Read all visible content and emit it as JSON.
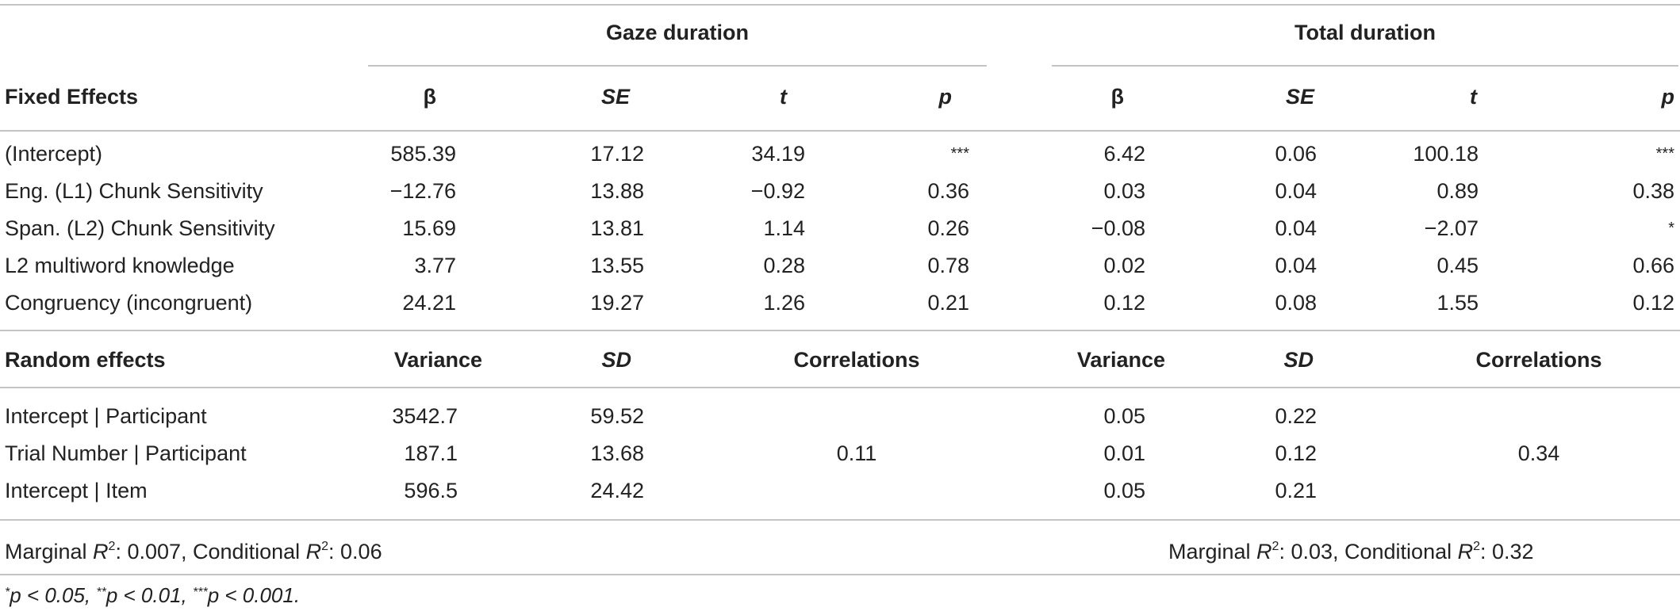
{
  "groups": {
    "gaze": "Gaze duration",
    "total": "Total duration"
  },
  "fixed": {
    "header": {
      "label": "Fixed Effects",
      "gaze": [
        "β",
        "SE",
        "t",
        "p"
      ],
      "total": [
        "β",
        "SE",
        "t",
        "p"
      ]
    },
    "rows": [
      {
        "label": "(Intercept)",
        "gaze": [
          "585.39",
          "17.12",
          "34.19",
          "***"
        ],
        "total": [
          "6.42",
          "0.06",
          "100.18",
          "***"
        ]
      },
      {
        "label": "Eng. (L1) Chunk Sensitivity",
        "gaze": [
          "−12.76",
          "13.88",
          "−0.92",
          "0.36"
        ],
        "total": [
          "0.03",
          "0.04",
          "0.89",
          "0.38"
        ]
      },
      {
        "label": "Span. (L2) Chunk Sensitivity",
        "gaze": [
          "15.69",
          "13.81",
          "1.14",
          "0.26"
        ],
        "total": [
          "−0.08",
          "0.04",
          "−2.07",
          "*"
        ]
      },
      {
        "label": "L2 multiword knowledge",
        "gaze": [
          "3.77",
          "13.55",
          "0.28",
          "0.78"
        ],
        "total": [
          "0.02",
          "0.04",
          "0.45",
          "0.66"
        ]
      },
      {
        "label": "Congruency (incongruent)",
        "gaze": [
          "24.21",
          "19.27",
          "1.26",
          "0.21"
        ],
        "total": [
          "0.12",
          "0.08",
          "1.55",
          "0.12"
        ]
      }
    ]
  },
  "random": {
    "header": {
      "label": "Random effects",
      "gaze": [
        "Variance",
        "SD",
        "Correlations"
      ],
      "total": [
        "Variance",
        "SD",
        "Correlations"
      ]
    },
    "rows": [
      {
        "label": "Intercept | Participant",
        "gaze": [
          "3542.7",
          "59.52"
        ],
        "total": [
          "0.05",
          "0.22"
        ]
      },
      {
        "label": "Trial Number | Participant",
        "gaze": [
          "187.1",
          "13.68"
        ],
        "total": [
          "0.01",
          "0.12"
        ]
      },
      {
        "label": "Intercept | Item",
        "gaze": [
          "596.5",
          "24.42"
        ],
        "total": [
          "0.05",
          "0.21"
        ]
      }
    ],
    "correlations": {
      "gaze": "0.11",
      "total": "0.34"
    }
  },
  "fit": {
    "gaze": {
      "marginal_prefix": "Marginal ",
      "r": "R",
      "two": "2",
      "marginal_value": ": 0.007, Conditional ",
      "conditional_value": ": 0.06"
    },
    "total": {
      "marginal_prefix": "Marginal ",
      "r": "R",
      "two": "2",
      "marginal_value": ": 0.03, Conditional ",
      "conditional_value": ": 0.32"
    }
  },
  "footnote": {
    "s1": "*",
    "p1": "p < 0.05, ",
    "s2": "**",
    "p2": "p < 0.01, ",
    "s3": "***",
    "p3": "p < 0.001."
  }
}
